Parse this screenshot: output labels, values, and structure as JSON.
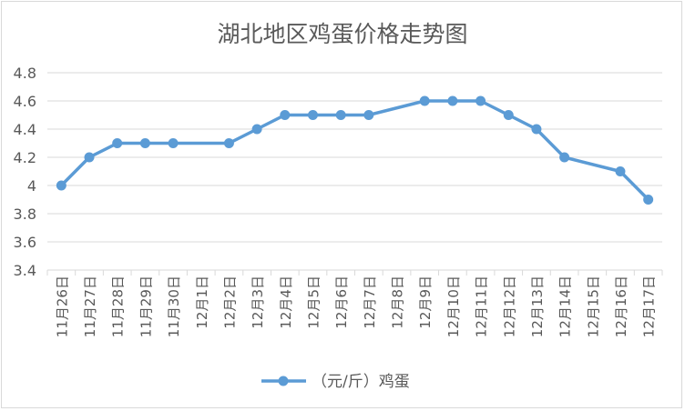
{
  "chart_data": {
    "type": "line",
    "title": "湖北地区鸡蛋价格走势图",
    "categories": [
      "11月26日",
      "11月27日",
      "11月28日",
      "11月29日",
      "11月30日",
      "12月1日",
      "12月2日",
      "12月3日",
      "12月4日",
      "12月5日",
      "12月6日",
      "12月7日",
      "12月8日",
      "12月9日",
      "12月10日",
      "12月11日",
      "12月12日",
      "12月13日",
      "12月14日",
      "12月15日",
      "12月16日",
      "12月17日"
    ],
    "series": [
      {
        "name": "（元/斤）鸡蛋",
        "values": [
          4.0,
          4.2,
          4.3,
          4.3,
          4.3,
          null,
          4.3,
          4.4,
          4.5,
          4.5,
          4.5,
          4.5,
          null,
          4.6,
          4.6,
          4.6,
          4.5,
          4.4,
          4.2,
          null,
          4.1,
          3.9
        ],
        "color": "#5b9bd5"
      }
    ],
    "ylim": [
      3.4,
      4.8
    ],
    "yticks": [
      "3.4",
      "3.6",
      "3.8",
      "4",
      "4.2",
      "4.4",
      "4.6",
      "4.8"
    ],
    "grid": true,
    "legend": "bottom",
    "connect_gaps": true
  }
}
